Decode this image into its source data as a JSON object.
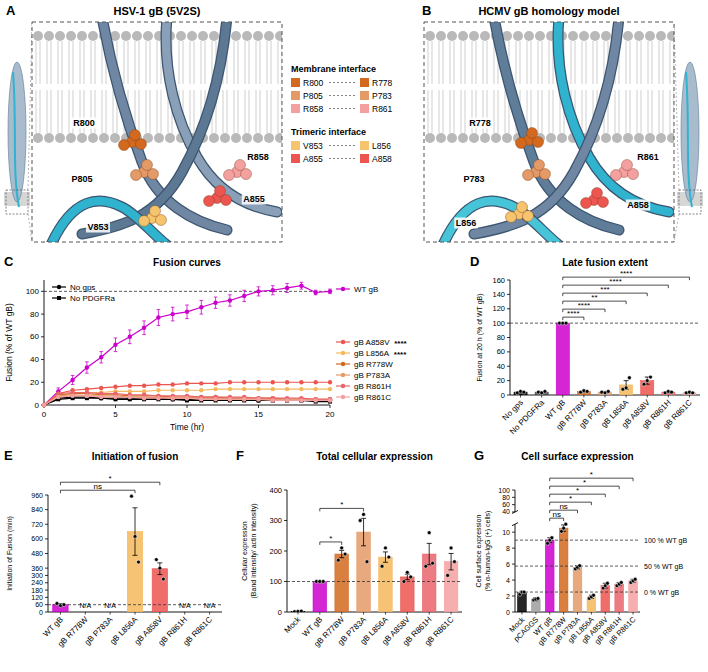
{
  "figure": {
    "panels": [
      {
        "panel": "A",
        "title": "HSV-1 gB (5V2S)",
        "residues": [
          {
            "label": "R800",
            "color": "#d2691e"
          },
          {
            "label": "P805",
            "color": "#e39a66"
          },
          {
            "label": "R858",
            "color": "#f4a0a0"
          },
          {
            "label": "A855",
            "color": "#ec5550"
          },
          {
            "label": "V853",
            "color": "#f5c46c"
          }
        ]
      },
      {
        "panel": "B",
        "title": "HCMV gB homology model",
        "residues": [
          {
            "label": "R778",
            "color": "#d2691e"
          },
          {
            "label": "P783",
            "color": "#e39a66"
          },
          {
            "label": "R861",
            "color": "#f4a0a0"
          },
          {
            "label": "A858",
            "color": "#ec5550"
          },
          {
            "label": "L856",
            "color": "#f5c46c"
          }
        ]
      }
    ],
    "key": {
      "groups": [
        {
          "title": "Membrane interface",
          "pairs": [
            {
              "left": "R800",
              "right": "R778",
              "color": "#d2691e"
            },
            {
              "left": "P805",
              "right": "P783",
              "color": "#e39a66"
            },
            {
              "left": "R858",
              "right": "R861",
              "color": "#f4a0a0"
            }
          ]
        },
        {
          "title": "Trimeric interface",
          "pairs": [
            {
              "left": "V853",
              "right": "L856",
              "color": "#f5c46c"
            },
            {
              "left": "A855",
              "right": "A858",
              "color": "#ec5550"
            }
          ]
        }
      ]
    }
  },
  "chart_data": [
    {
      "panel": "C",
      "type": "line",
      "title": "Fusion curves",
      "xlabel": "Time (hr)",
      "ylabel": "Fusion (% of WT gB)",
      "x": [
        0,
        1,
        2,
        3,
        4,
        5,
        6,
        7,
        8,
        9,
        10,
        11,
        12,
        13,
        14,
        15,
        16,
        17,
        18,
        19,
        20
      ],
      "xlim": [
        0,
        20
      ],
      "ylim": [
        0,
        110
      ],
      "xticks": [
        0,
        5,
        10,
        15,
        20
      ],
      "yticks": [
        0,
        20,
        40,
        60,
        80,
        100
      ],
      "reference_lines": [
        {
          "value": 100
        }
      ],
      "legend": "right",
      "series": [
        {
          "name": "No gps",
          "color": "#000000",
          "marker": "circle",
          "values": [
            0,
            6,
            7,
            7,
            6,
            6,
            6,
            6,
            6,
            5,
            5,
            5,
            5,
            5,
            5,
            4,
            4,
            4,
            4,
            4,
            4
          ]
        },
        {
          "name": "No PDGFRa",
          "color": "#000000",
          "marker": "square",
          "values": [
            0,
            5,
            6,
            6,
            6,
            5,
            5,
            5,
            5,
            5,
            4,
            4,
            4,
            4,
            4,
            4,
            4,
            4,
            4,
            3,
            3
          ]
        },
        {
          "name": "WT gB",
          "color": "#cc00cc",
          "marker": "circle",
          "values": [
            0,
            12,
            22,
            33,
            42,
            53,
            60,
            68,
            77,
            80,
            82,
            86,
            90,
            92,
            96,
            100,
            101,
            103,
            105,
            99,
            100
          ],
          "errors": [
            0,
            3,
            4,
            5,
            5,
            6,
            6,
            6,
            7,
            6,
            6,
            6,
            5,
            5,
            5,
            4,
            4,
            4,
            3,
            2,
            2
          ]
        },
        {
          "name": "gB A858V",
          "color": "#ec5550",
          "marker": "circle",
          "annotation": "****",
          "values": [
            0,
            10,
            13,
            14,
            15,
            16,
            17,
            17,
            18,
            18,
            19,
            19,
            19,
            20,
            20,
            20,
            20,
            20,
            20,
            20,
            20
          ]
        },
        {
          "name": "gB L856A",
          "color": "#f5b85c",
          "marker": "circle",
          "annotation": "****",
          "values": [
            0,
            8,
            10,
            11,
            11,
            12,
            12,
            12,
            13,
            13,
            13,
            13,
            14,
            14,
            14,
            14,
            14,
            14,
            14,
            14,
            14
          ]
        },
        {
          "name": "gB R778W",
          "color": "#d2691e",
          "marker": "circle",
          "values": [
            0,
            9,
            10,
            10,
            9,
            9,
            8,
            8,
            8,
            7,
            7,
            7,
            7,
            6,
            6,
            6,
            6,
            5,
            5,
            5,
            5
          ]
        },
        {
          "name": "gB P783A",
          "color": "#e39a66",
          "marker": "circle",
          "values": [
            0,
            8,
            9,
            8,
            8,
            8,
            7,
            7,
            7,
            6,
            6,
            6,
            6,
            5,
            5,
            5,
            5,
            5,
            5,
            5,
            5
          ]
        },
        {
          "name": "gB R861H",
          "color": "#e9646c",
          "marker": "circle",
          "values": [
            0,
            10,
            11,
            11,
            10,
            10,
            9,
            9,
            8,
            8,
            8,
            7,
            7,
            7,
            7,
            6,
            6,
            6,
            6,
            5,
            5
          ]
        },
        {
          "name": "gB R861C",
          "color": "#f4a0a0",
          "marker": "circle",
          "values": [
            0,
            7,
            8,
            8,
            7,
            7,
            7,
            6,
            6,
            6,
            6,
            5,
            5,
            5,
            5,
            5,
            4,
            4,
            4,
            4,
            4
          ]
        }
      ]
    },
    {
      "panel": "D",
      "type": "bar",
      "title": "Late fusion extent",
      "ylabel": "Fusion at 20 h (% of WT gB)",
      "categories": [
        "No gps",
        "No PDGFRa",
        "WT gB",
        "gB R778W",
        "gB P783A",
        "gB L856A",
        "gB A858V",
        "gB R861H",
        "gB R861C"
      ],
      "values": [
        4,
        4,
        100,
        5,
        4,
        14,
        20,
        4,
        3
      ],
      "errors": [
        1,
        1,
        0,
        1,
        1,
        6,
        5,
        1,
        1
      ],
      "points": [
        [
          3,
          5,
          4
        ],
        [
          4,
          3,
          5
        ],
        [
          100,
          100,
          100
        ],
        [
          4,
          6,
          5
        ],
        [
          4,
          3,
          5
        ],
        [
          8,
          10,
          24
        ],
        [
          15,
          20,
          25
        ],
        [
          3,
          5,
          4
        ],
        [
          3,
          4,
          3
        ]
      ],
      "colors": [
        "#000000",
        "#444444",
        "#cc00cc",
        "#d2691e",
        "#e39a66",
        "#f5b85c",
        "#ec5550",
        "#e9646c",
        "#f4a0a0"
      ],
      "ylim": [
        0,
        160
      ],
      "yticks": [
        0,
        20,
        40,
        60,
        80,
        100,
        120,
        140,
        160
      ],
      "reference_lines": [
        {
          "value": 100
        }
      ],
      "comparisons": [
        {
          "from": "WT gB",
          "to": "gB R778W",
          "label": "****"
        },
        {
          "from": "WT gB",
          "to": "gB P783A",
          "label": "****"
        },
        {
          "from": "WT gB",
          "to": "gB L856A",
          "label": "**"
        },
        {
          "from": "WT gB",
          "to": "gB A858V",
          "label": "***"
        },
        {
          "from": "WT gB",
          "to": "gB R861H",
          "label": "****"
        },
        {
          "from": "WT gB",
          "to": "gB R861C",
          "label": "****"
        }
      ]
    },
    {
      "panel": "E",
      "type": "bar",
      "title": "Initiation of fusion",
      "ylabel": "Initiation of Fusion (min)",
      "categories": [
        "WT gB",
        "gB R778W",
        "gB P783A",
        "gB L856A",
        "gB A858V",
        "gB R861H",
        "gB R861C"
      ],
      "values": [
        60,
        null,
        null,
        660,
        355,
        null,
        null
      ],
      "value_labels": [
        null,
        "N/A",
        "N/A",
        null,
        null,
        "N/A",
        "N/A"
      ],
      "errors": [
        10,
        null,
        null,
        195,
        48,
        null,
        null
      ],
      "points": [
        [
          70,
          52,
          60
        ],
        null,
        null,
        [
          950,
          620,
          410
        ],
        [
          430,
          360,
          270
        ],
        null,
        null
      ],
      "colors": [
        "#cc00cc",
        "#d2691e",
        "#e39a66",
        "#f5b85c",
        "#ec5550",
        "#e9646c",
        "#f4a0a0"
      ],
      "ylim": [
        0,
        960
      ],
      "yticks": [
        0,
        60,
        120,
        180,
        240,
        300,
        360,
        480,
        600,
        720,
        840,
        960
      ],
      "reference_lines": [
        {
          "value": 60
        }
      ],
      "comparisons": [
        {
          "from": "WT gB",
          "to": "gB L856A",
          "label": "ns"
        },
        {
          "from": "WT gB",
          "to": "gB A858V",
          "label": "*"
        }
      ]
    },
    {
      "panel": "F",
      "type": "bar",
      "title": "Total cellular expression",
      "ylabel": [
        "Cellular expression",
        "(Band intensity/ actin intensity)"
      ],
      "categories": [
        "Mock",
        "WT gB",
        "gB R778W",
        "gB P783A",
        "gB L856A",
        "gB A858V",
        "gB R861H",
        "gB R861C"
      ],
      "values": [
        2,
        100,
        190,
        262,
        180,
        115,
        190,
        165
      ],
      "errors": [
        1,
        0,
        12,
        45,
        17,
        9,
        35,
        27
      ],
      "points": [
        [
          1,
          2,
          3
        ],
        [
          100,
          100,
          100
        ],
        [
          170,
          210,
          190
        ],
        [
          300,
          320,
          165
        ],
        [
          150,
          210,
          180
        ],
        [
          100,
          130,
          115
        ],
        [
          150,
          260,
          160
        ],
        [
          120,
          210,
          165
        ]
      ],
      "colors": [
        "#000000",
        "#cc00cc",
        "#d2691e",
        "#e39a66",
        "#f5b85c",
        "#ec5550",
        "#e9646c",
        "#f4a0a0"
      ],
      "ylim": [
        0,
        400
      ],
      "yticks": [
        0,
        100,
        200,
        300,
        400
      ],
      "reference_lines": [
        {
          "value": 100
        }
      ],
      "comparisons": [
        {
          "from": "WT gB",
          "to": "gB R778W",
          "label": "*"
        },
        {
          "from": "WT gB",
          "to": "gB P783A",
          "label": "*"
        }
      ]
    },
    {
      "panel": "G",
      "type": "bar",
      "title": "Cell surface expression",
      "ylabel": [
        "Cell surface expression",
        "(% α-human-IgG (+) cells)"
      ],
      "categories": [
        "Mock",
        "pCAGGS",
        "WT gB",
        "gB R778W",
        "gB P783A",
        "gB L856A",
        "gB A858V",
        "gB R861H",
        "gB R861C"
      ],
      "values": [
        2.4,
        1.6,
        9.0,
        10.5,
        5.6,
        1.9,
        3.3,
        3.5,
        3.9
      ],
      "errors": [
        0.2,
        0.2,
        0.3,
        0.4,
        0.2,
        0.2,
        0.3,
        0.2,
        0.2
      ],
      "points": [
        [
          2.2,
          2.5,
          2.5
        ],
        [
          1.5,
          1.6,
          1.7
        ],
        [
          8.6,
          9.0,
          9.3
        ],
        [
          10.1,
          10.5,
          11.0
        ],
        [
          5.4,
          5.6,
          5.8
        ],
        [
          1.7,
          1.9,
          2.1
        ],
        [
          3.0,
          3.3,
          3.6
        ],
        [
          3.3,
          3.5,
          3.7
        ],
        [
          3.7,
          3.9,
          4.1
        ]
      ],
      "colors": [
        "#000000",
        "#9e9e9e",
        "#cc00cc",
        "#d2691e",
        "#e39a66",
        "#f5b85c",
        "#ec5550",
        "#e9646c",
        "#f4a0a0"
      ],
      "ylim": [
        0,
        100
      ],
      "axis_break": [
        11,
        40
      ],
      "yticks": [
        0,
        2,
        4,
        6,
        8,
        10,
        40,
        60,
        80,
        100
      ],
      "reference_lines": [
        {
          "value": 9,
          "label": "100 % WT gB"
        },
        {
          "value": 5.75,
          "label": "50 % WT gB"
        },
        {
          "value": 2.5,
          "label": "0 % WT gB"
        }
      ],
      "comparisons": [
        {
          "from": "WT gB",
          "to": "gB R778W",
          "label": "ns"
        },
        {
          "from": "WT gB",
          "to": "gB P783A",
          "label": "ns"
        },
        {
          "from": "WT gB",
          "to": "gB L856A",
          "label": "*"
        },
        {
          "from": "WT gB",
          "to": "gB A858V",
          "label": "*"
        },
        {
          "from": "WT gB",
          "to": "gB R861H",
          "label": "*"
        },
        {
          "from": "WT gB",
          "to": "gB R861C",
          "label": "*"
        }
      ]
    }
  ]
}
